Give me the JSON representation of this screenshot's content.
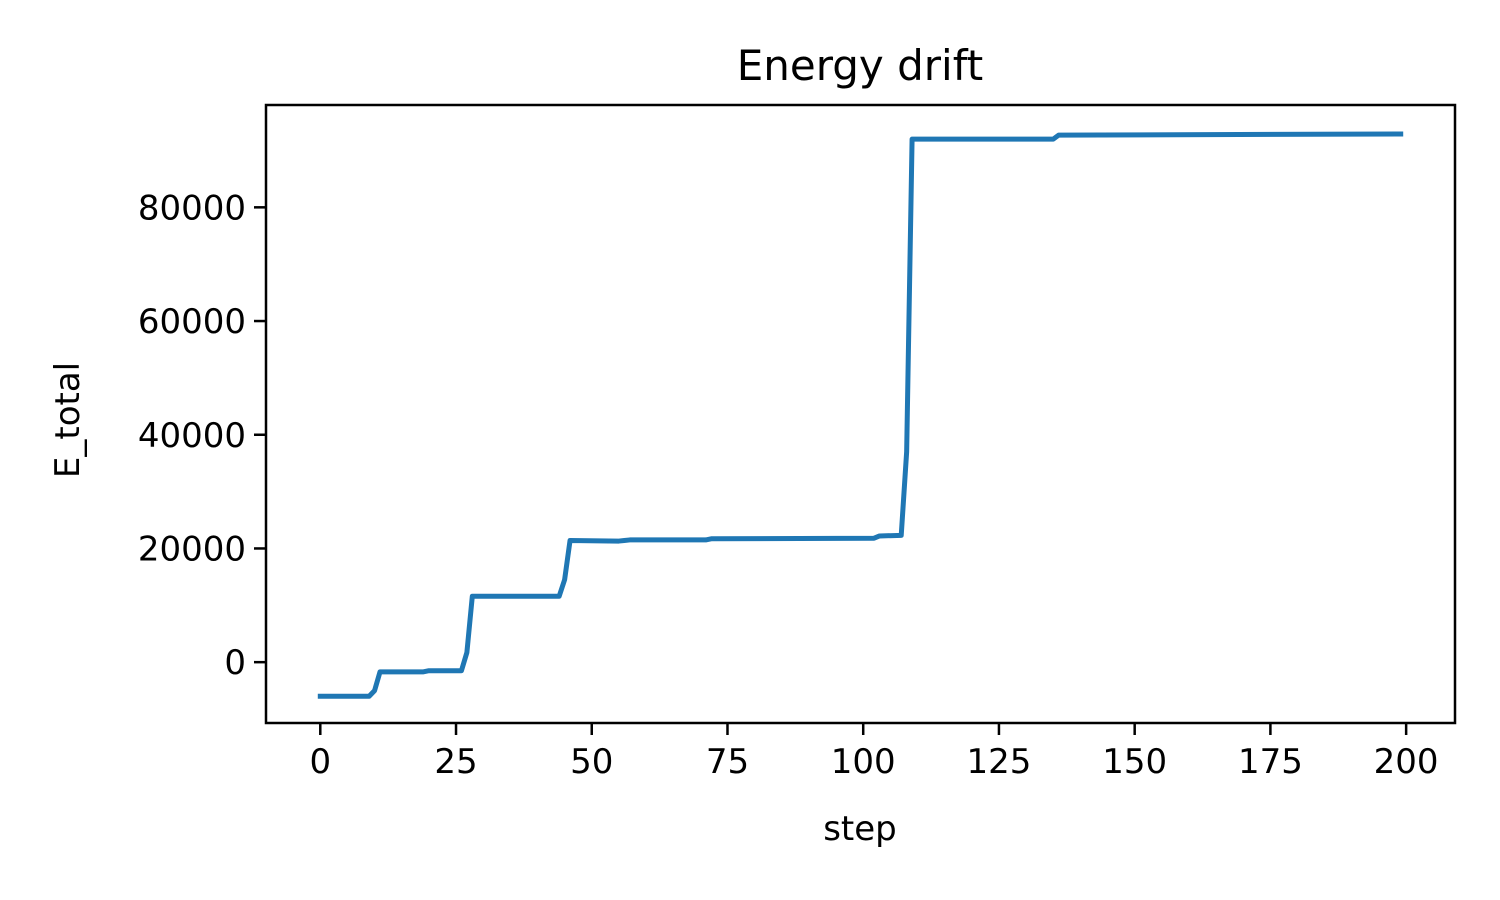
{
  "chart_data": {
    "type": "line",
    "title": "Energy drift",
    "xlabel": "step",
    "ylabel": "E_total",
    "xlim": [
      -10,
      209
    ],
    "ylim": [
      -10700,
      98000
    ],
    "xticks": [
      0,
      25,
      50,
      75,
      100,
      125,
      150,
      175,
      200
    ],
    "xtick_labels": [
      "0",
      "25",
      "50",
      "75",
      "100",
      "125",
      "150",
      "175",
      "200"
    ],
    "yticks": [
      0,
      20000,
      40000,
      60000,
      80000
    ],
    "ytick_labels": [
      "0",
      "20000",
      "40000",
      "60000",
      "80000"
    ],
    "grid": false,
    "legend": false,
    "colors": {
      "line": "#1f77b4",
      "axes": "#000000",
      "background": "#ffffff"
    },
    "series": [
      {
        "x": [
          0,
          9,
          10,
          11,
          19,
          20,
          26,
          27,
          28,
          44,
          45,
          46,
          55,
          56,
          57,
          71,
          72,
          102,
          103,
          107,
          108,
          109,
          135,
          136,
          199
        ],
        "y": [
          -6000,
          -6000,
          -5000,
          -1700,
          -1700,
          -1500,
          -1500,
          1700,
          11600,
          11600,
          14500,
          21400,
          21300,
          21400,
          21500,
          21500,
          21700,
          21800,
          22200,
          22300,
          37000,
          92000,
          92000,
          92700,
          92900
        ]
      }
    ]
  }
}
